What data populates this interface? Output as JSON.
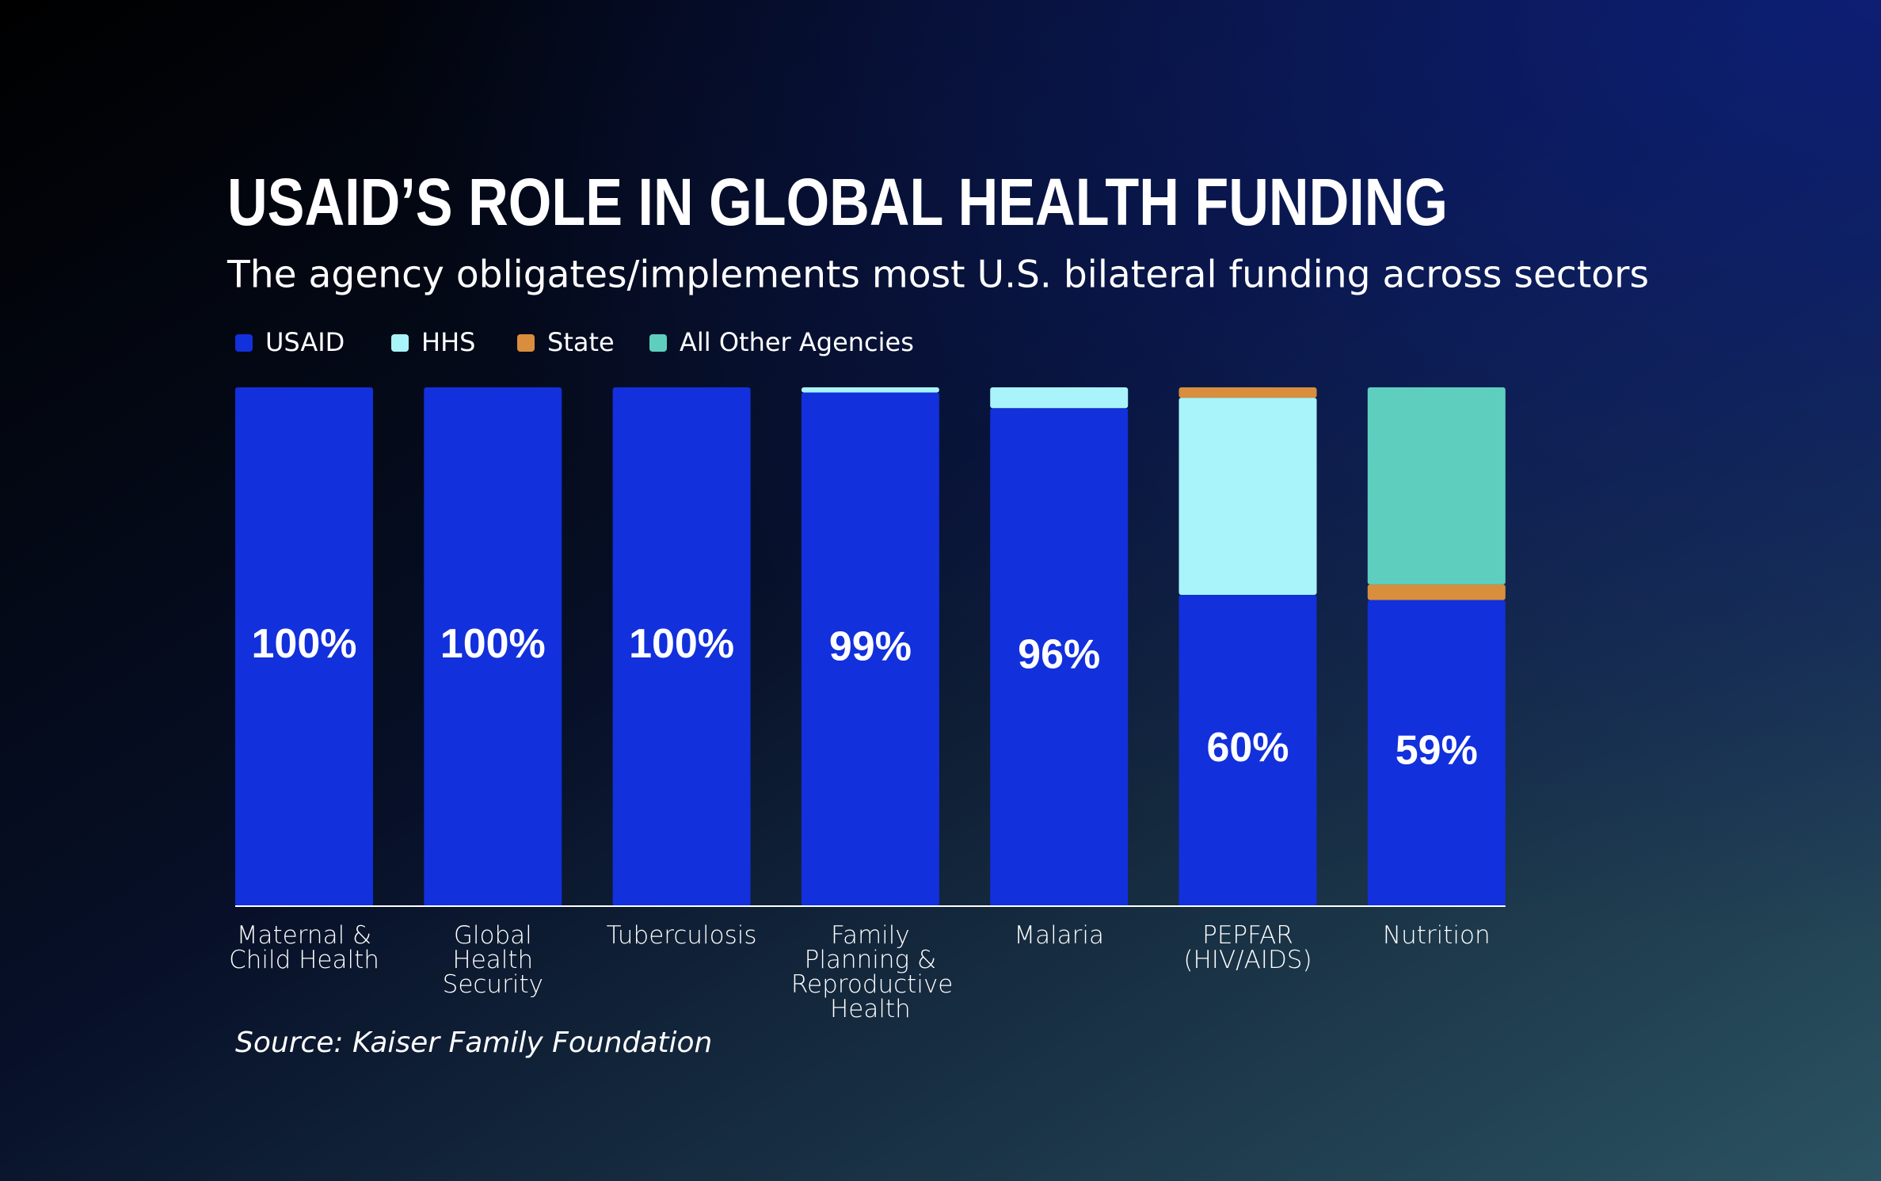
{
  "chart_data": {
    "type": "stacked_bar",
    "title": "USAID’S ROLE IN GLOBAL HEALTH FUNDING",
    "subtitle": "The agency obligates/implements most U.S. bilateral funding across sectors",
    "source": "Source: Kaiser Family Foundation",
    "categories": [
      "Maternal & Child Health",
      "Global Health Security",
      "Tuberculosis",
      "Family Planning & Reproductive Health",
      "Malaria",
      "PEPFAR (HIV/AIDS)",
      "Nutrition"
    ],
    "series": [
      {
        "name": "USAID",
        "color": "#1230dc",
        "values": [
          100,
          100,
          100,
          99,
          96,
          60,
          59
        ],
        "value_labels": [
          "100%",
          "100%",
          "100%",
          "99%",
          "96%",
          "60%",
          "59%"
        ]
      },
      {
        "name": "HHS",
        "color": "#a8f4fa",
        "values": [
          0,
          0,
          0,
          1,
          4,
          38,
          0
        ]
      },
      {
        "name": "State",
        "color": "#d88e3c",
        "values": [
          0,
          0,
          0,
          0,
          0,
          2,
          3
        ]
      },
      {
        "name": "All Other Agencies",
        "color": "#5ecfbf",
        "values": [
          0,
          0,
          0,
          0,
          0,
          0,
          38
        ]
      }
    ],
    "ylim": [
      0,
      100
    ]
  }
}
